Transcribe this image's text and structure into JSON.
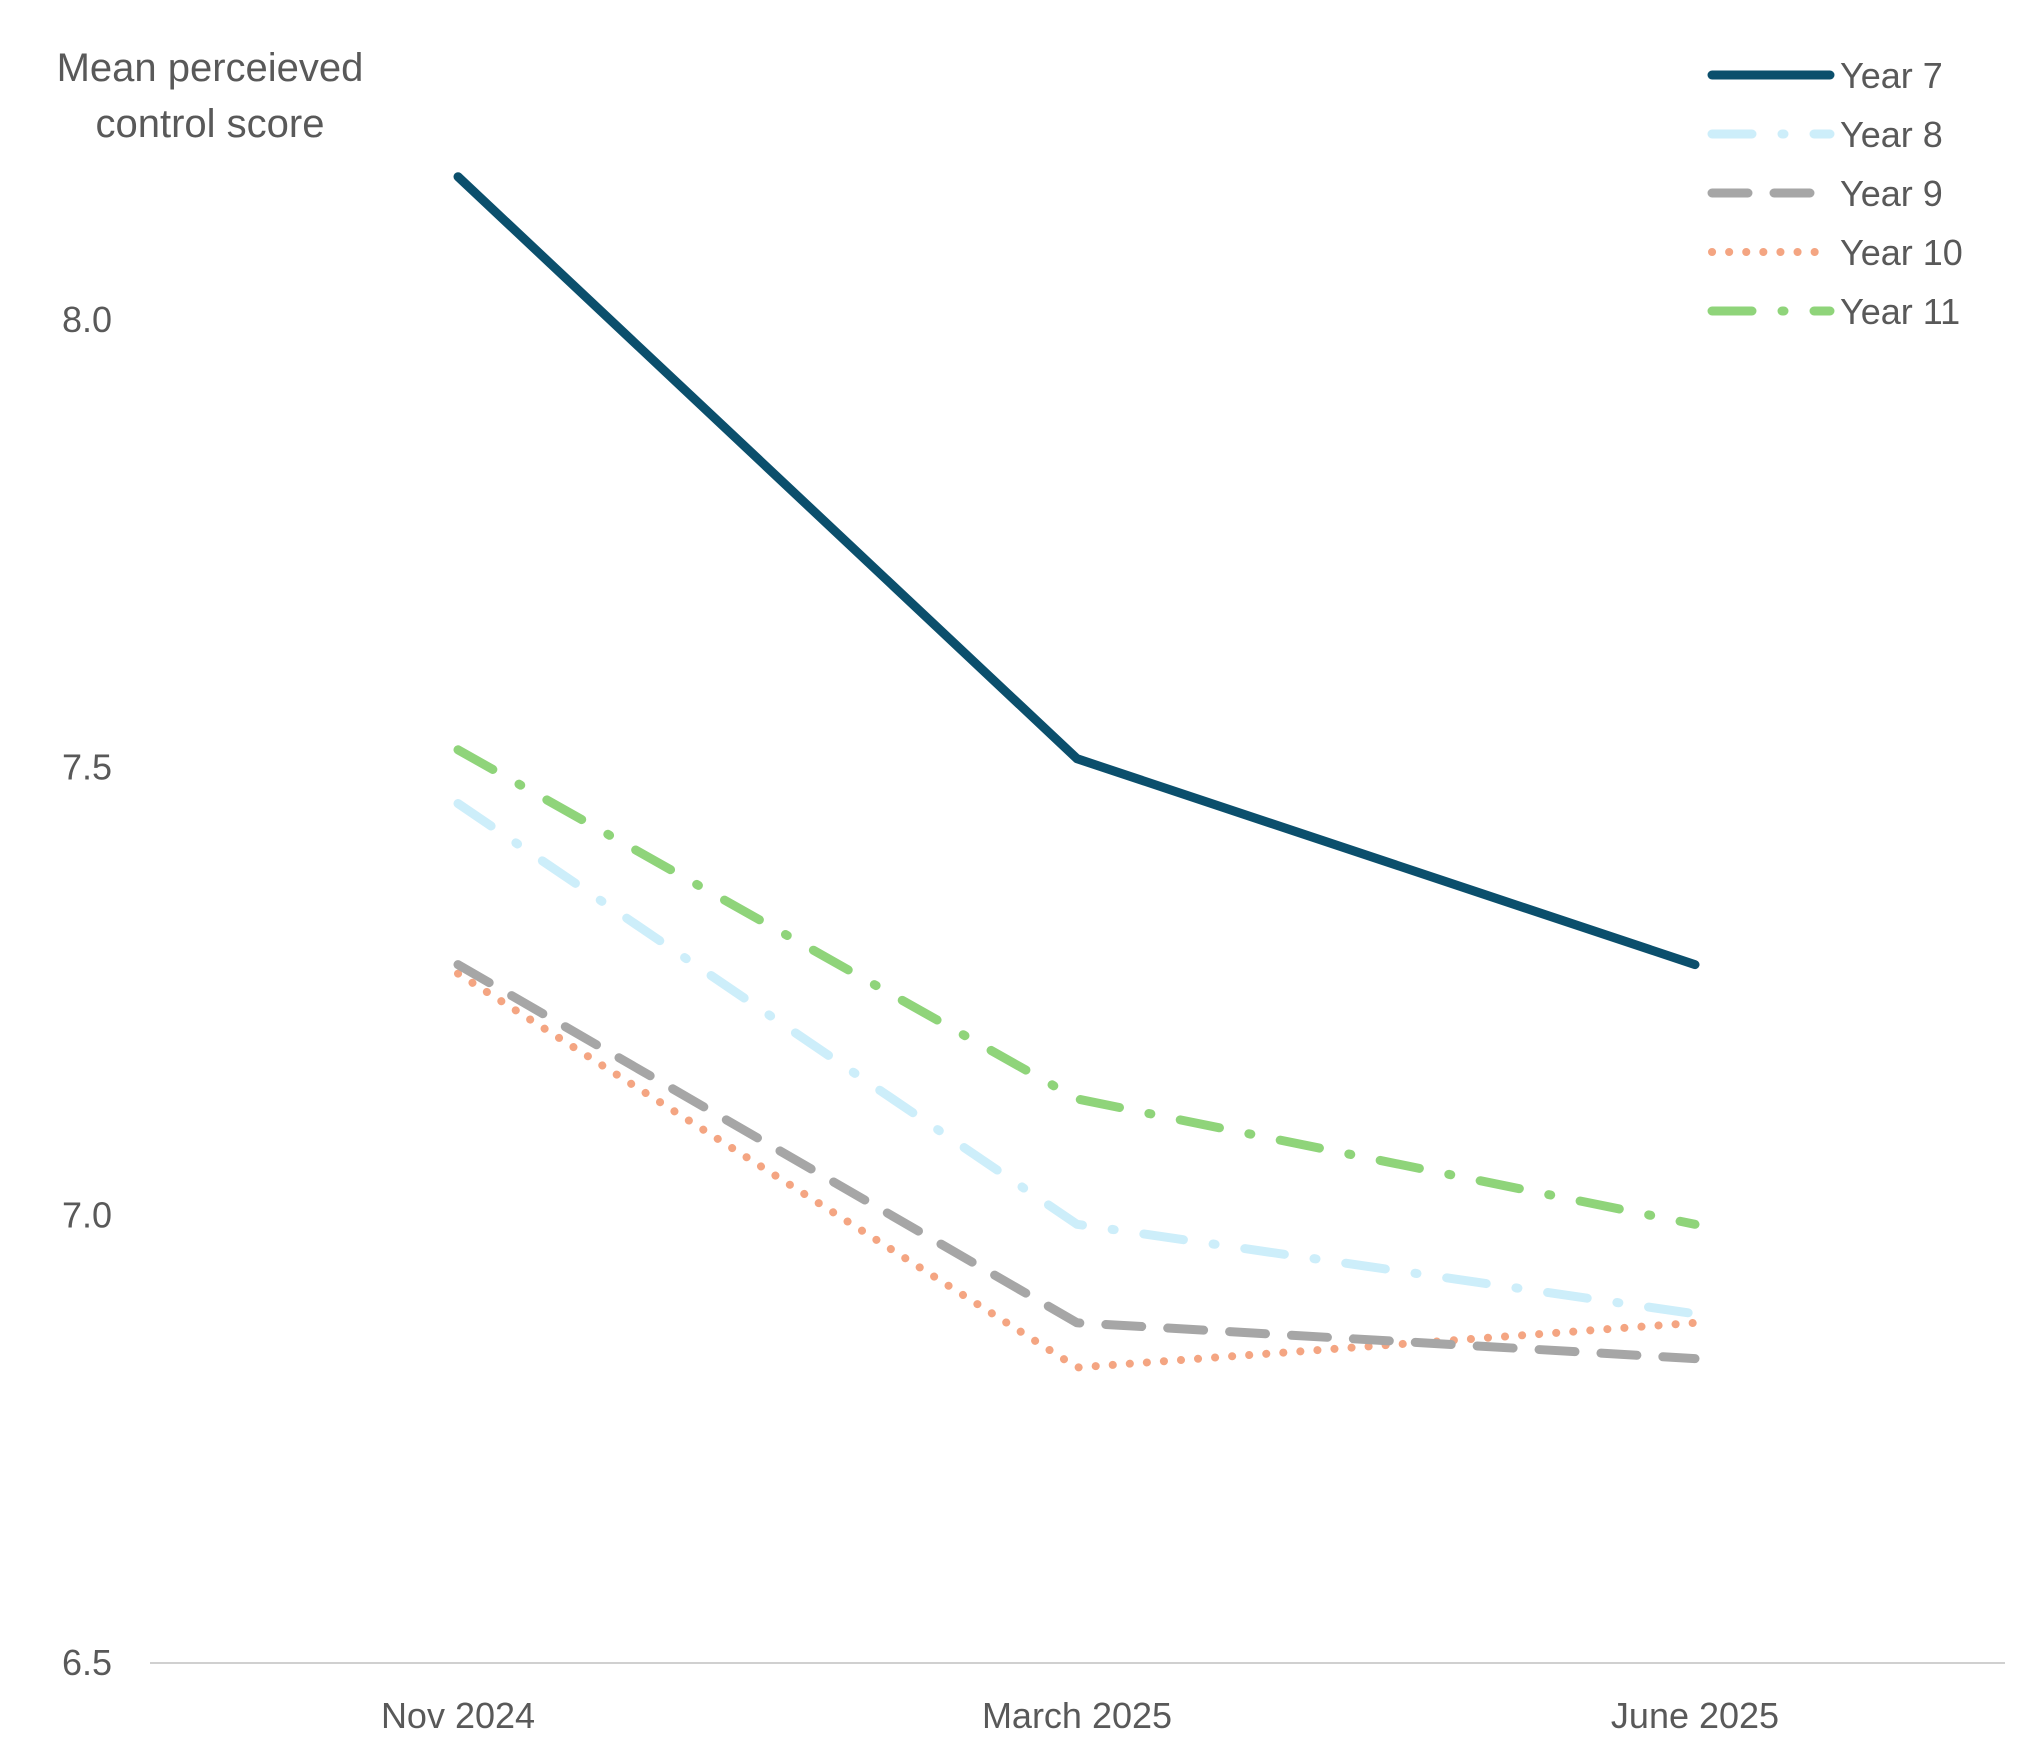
{
  "chart_data": {
    "type": "line",
    "ylabel": "Mean perceieved control score",
    "ylabel_lines": [
      "Mean perceieved",
      "control score"
    ],
    "xlabel": "",
    "categories": [
      "Nov 2024",
      "March 2025",
      "June 2025"
    ],
    "ylim": [
      6.5,
      8.2
    ],
    "yticks": [
      "6.5",
      "7.0",
      "7.5",
      "8.0"
    ],
    "grid": false,
    "legend_position": "top-right",
    "series": [
      {
        "name": "Year 7",
        "values": [
          8.16,
          7.51,
          7.28
        ],
        "color": "#0b4f6c",
        "style": "solid"
      },
      {
        "name": "Year 8",
        "values": [
          7.46,
          6.99,
          6.89
        ],
        "color": "#cdeefa",
        "style": "dash-dot"
      },
      {
        "name": "Year 9",
        "values": [
          7.28,
          6.88,
          6.84
        ],
        "color": "#a6a6a6",
        "style": "dash"
      },
      {
        "name": "Year 10",
        "values": [
          7.27,
          6.83,
          6.88
        ],
        "color": "#f4a582",
        "style": "dot"
      },
      {
        "name": "Year 11",
        "values": [
          7.52,
          7.13,
          6.99
        ],
        "color": "#8fd47a",
        "style": "dash-dot"
      }
    ]
  }
}
